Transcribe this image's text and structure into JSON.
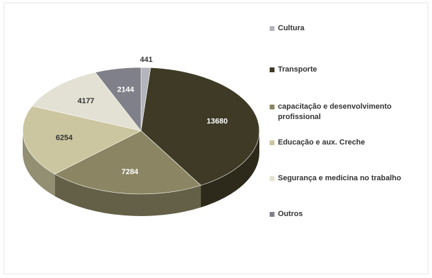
{
  "chart_data": {
    "type": "pie3d",
    "categories": [
      "Cultura",
      "Transporte",
      "capacitação e desenvolvimento profissional",
      "Educação e aux. Creche",
      "Segurança e medicina no trabalho",
      "Outros"
    ],
    "values": [
      441,
      13680,
      7284,
      6254,
      4177,
      2144
    ],
    "colors": [
      "#b4b4bc",
      "#3e3a25",
      "#8b8563",
      "#cbc69f",
      "#e3e1d3",
      "#80808a"
    ],
    "legend": "right"
  }
}
